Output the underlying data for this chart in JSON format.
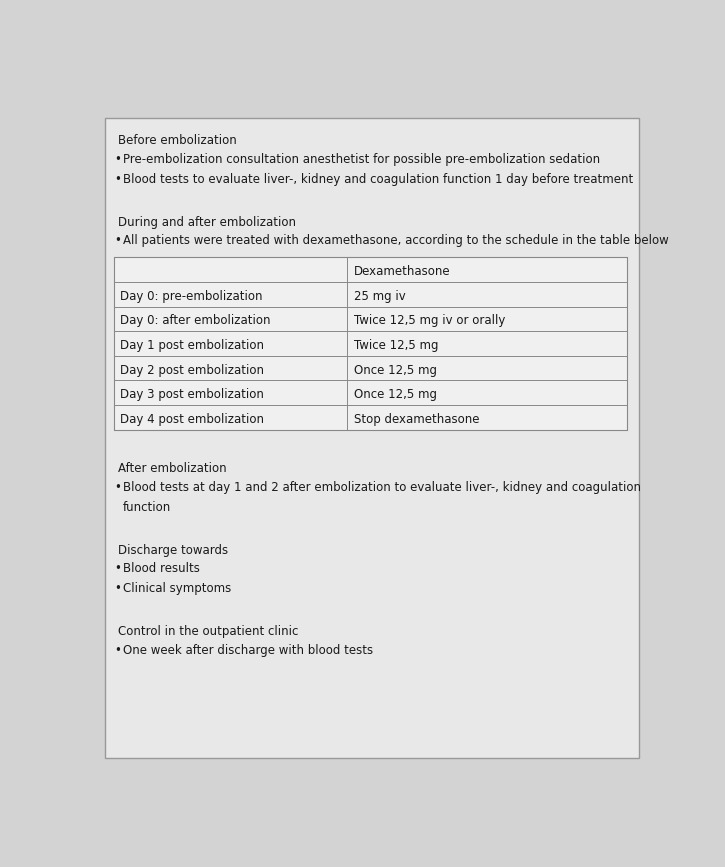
{
  "background_color": "#d3d3d3",
  "panel_color": "#e8e8e8",
  "text_color": "#1a1a1a",
  "border_color": "#999999",
  "table_border_color": "#888888",
  "sections": [
    {
      "header": "Before embolization",
      "bullets": [
        "Pre-embolization consultation anesthetist for possible pre-embolization sedation",
        "Blood tests to evaluate liver-, kidney and coagulation function 1 day before treatment"
      ],
      "table": null,
      "extra_gap_after": true
    },
    {
      "header": "During and after embolization",
      "bullets": [
        "All patients were treated with dexamethasone, according to the schedule in the table below"
      ],
      "table": {
        "col_header": "Dexamethasone",
        "rows": [
          [
            "Day 0: pre-embolization",
            "25 mg iv"
          ],
          [
            "Day 0: after embolization",
            "Twice 12,5 mg iv or orally"
          ],
          [
            "Day 1 post embolization",
            "Twice 12,5 mg"
          ],
          [
            "Day 2 post embolization",
            "Once 12,5 mg"
          ],
          [
            "Day 3 post embolization",
            "Once 12,5 mg"
          ],
          [
            "Day 4 post embolization",
            "Stop dexamethasone"
          ]
        ]
      },
      "extra_gap_after": false
    },
    {
      "header": "After embolization",
      "bullets": [
        "Blood tests at day 1 and 2 after embolization to evaluate liver-, kidney and coagulation",
        "function"
      ],
      "bullet_continuation": true,
      "table": null,
      "extra_gap_after": true
    },
    {
      "header": "Discharge towards",
      "bullets": [
        "Blood results",
        "Clinical symptoms"
      ],
      "table": null,
      "extra_gap_after": true
    },
    {
      "header": "Control in the outpatient clinic",
      "bullets": [
        "One week after discharge with blood tests"
      ],
      "table": null,
      "extra_gap_after": false
    }
  ],
  "font_family": "DejaVu Sans",
  "header_fontsize": 8.5,
  "bullet_fontsize": 8.5,
  "table_fontsize": 8.5,
  "figsize": [
    7.25,
    8.67
  ],
  "dpi": 100
}
